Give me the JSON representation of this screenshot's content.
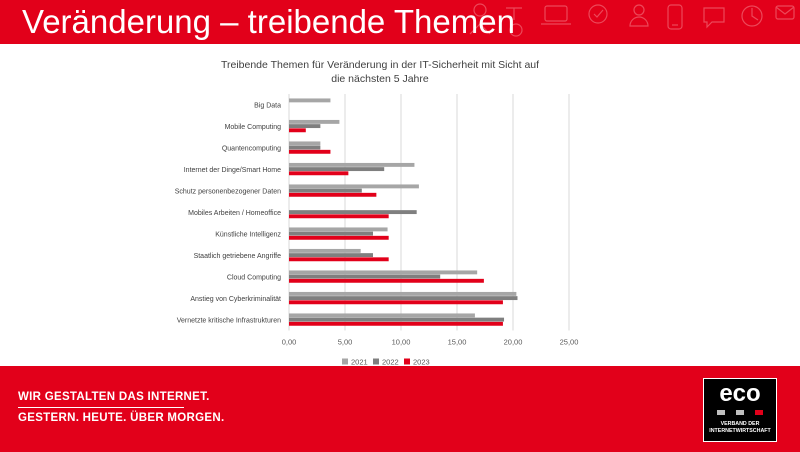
{
  "slide": {
    "title": "Veränderung – treibende Themen"
  },
  "footer": {
    "slogan_line1": "WIR GESTALTEN DAS INTERNET.",
    "slogan_line2": "GESTERN. HEUTE. ÜBER MORGEN.",
    "logo_text": "eco",
    "logo_subtitle_line1": "VERBAND DER",
    "logo_subtitle_line2": "INTERNETWIRTSCHAFT"
  },
  "colors": {
    "brand_red": "#e2001a",
    "series_2021": "#a6a6a6",
    "series_2022": "#7f7f7f",
    "series_2023": "#e2001a"
  },
  "icons": [
    "tech-pattern-icon"
  ],
  "chart_data": {
    "type": "bar",
    "orientation": "horizontal",
    "title_lines": [
      "Treibende Themen für Veränderung in der IT-Sicherheit mit Sicht auf",
      "die nächsten 5 Jahre"
    ],
    "categories": [
      "Big Data",
      "Mobile Computing",
      "Quantencomputing",
      "Internet der Dinge/Smart Home",
      "Schutz personenbezogener Daten",
      "Mobiles Arbeiten / Homeoffice",
      "Künstliche Intelligenz",
      "Staatlich getriebene Angriffe",
      "Cloud Computing",
      "Anstieg von Cyberkriminalität",
      "Vernetzte kritische Infrastrukturen"
    ],
    "series": [
      {
        "name": "2021",
        "color": "#a6a6a6",
        "values": [
          3.7,
          4.5,
          2.8,
          11.2,
          11.6,
          0,
          8.8,
          6.4,
          16.8,
          20.3,
          16.6
        ]
      },
      {
        "name": "2022",
        "color": "#7f7f7f",
        "values": [
          0,
          2.8,
          2.8,
          8.5,
          6.5,
          11.4,
          7.5,
          7.5,
          13.5,
          20.4,
          19.2
        ]
      },
      {
        "name": "2023",
        "color": "#e2001a",
        "values": [
          0,
          1.5,
          3.7,
          5.3,
          7.8,
          8.9,
          8.9,
          8.9,
          17.4,
          19.1,
          19.1
        ]
      }
    ],
    "xlim": [
      0,
      25
    ],
    "x_ticks": [
      "0,00",
      "5,00",
      "10,00",
      "15,00",
      "20,00",
      "25,00"
    ],
    "grid": "vertical",
    "legend": "bottom"
  }
}
